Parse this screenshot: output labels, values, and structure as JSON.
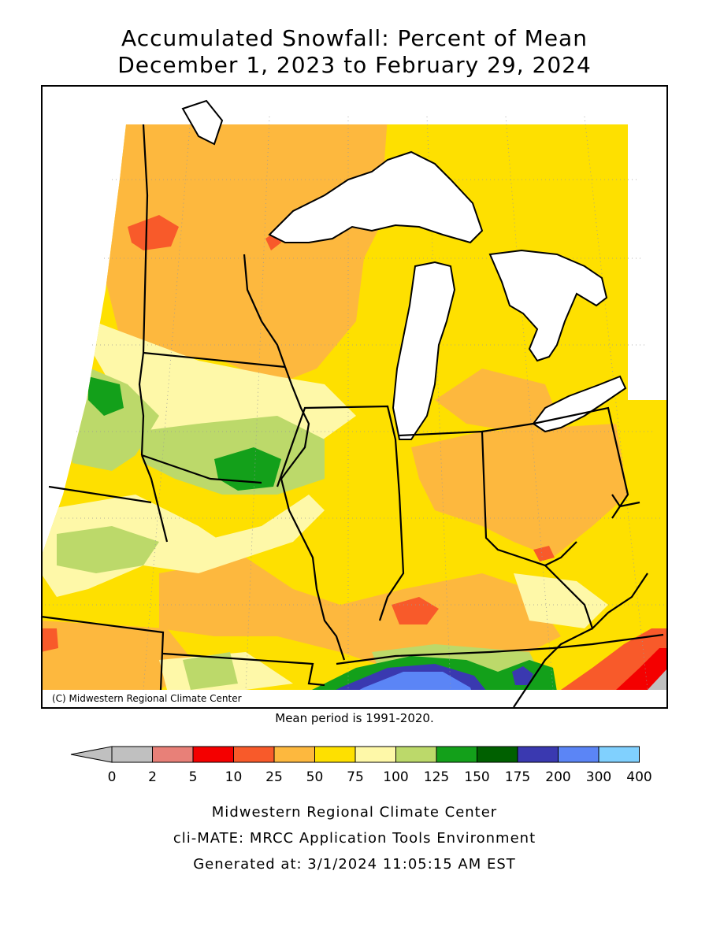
{
  "title_line1": "Accumulated Snowfall: Percent of Mean",
  "title_line2": "December 1, 2023 to February 29, 2024",
  "credit": "(C) Midwestern Regional Climate Center",
  "mean_period": "Mean period is 1991-2020.",
  "legend": {
    "colors": [
      "#c0c0c0",
      "#e88078",
      "#f40000",
      "#f85a2a",
      "#fdb83e",
      "#fee000",
      "#fef8a8",
      "#bcd96a",
      "#13a01a",
      "#006000",
      "#3a39b0",
      "#5b85f6",
      "#80d0fe"
    ],
    "ticks": [
      "0",
      "2",
      "5",
      "10",
      "25",
      "50",
      "75",
      "100",
      "125",
      "150",
      "175",
      "200",
      "300",
      "400"
    ]
  },
  "footer": {
    "line1": "Midwestern Regional Climate Center",
    "line2": "cli-MATE: MRCC Application Tools Environment",
    "line3": "Generated at: 3/1/2024 11:05:15 AM EST"
  }
}
